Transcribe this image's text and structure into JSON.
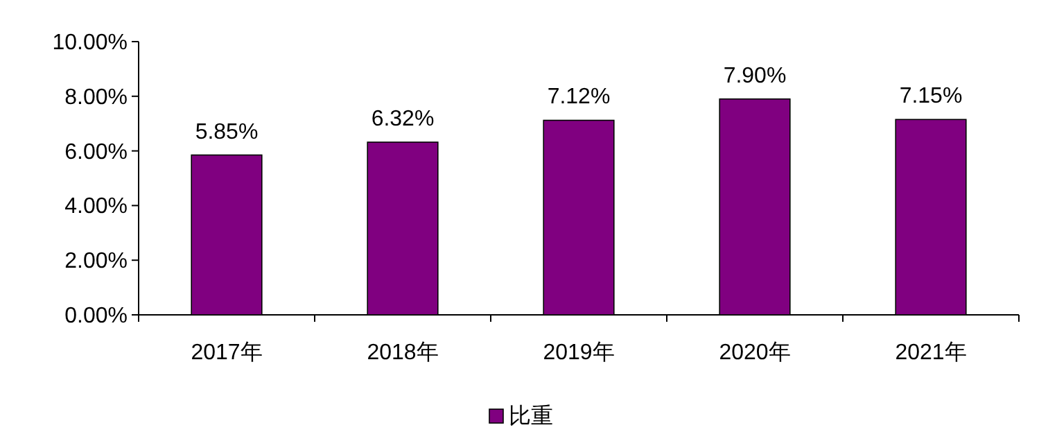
{
  "chart_data": {
    "type": "bar",
    "categories": [
      "2017年",
      "2018年",
      "2019年",
      "2020年",
      "2021年"
    ],
    "series": [
      {
        "name": "比重",
        "color": "#800080",
        "values": [
          5.85,
          6.32,
          7.12,
          7.9,
          7.15
        ],
        "value_labels": [
          "5.85%",
          "6.32%",
          "7.12%",
          "7.90%",
          "7.15%"
        ]
      }
    ],
    "ylim": [
      0,
      10
    ],
    "yticks": [
      {
        "value": 0,
        "label": "0.00%"
      },
      {
        "value": 2,
        "label": "2.00%"
      },
      {
        "value": 4,
        "label": "4.00%"
      },
      {
        "value": 6,
        "label": "6.00%"
      },
      {
        "value": 8,
        "label": "8.00%"
      },
      {
        "value": 10,
        "label": "10.00%"
      }
    ],
    "legend": "bottom"
  }
}
